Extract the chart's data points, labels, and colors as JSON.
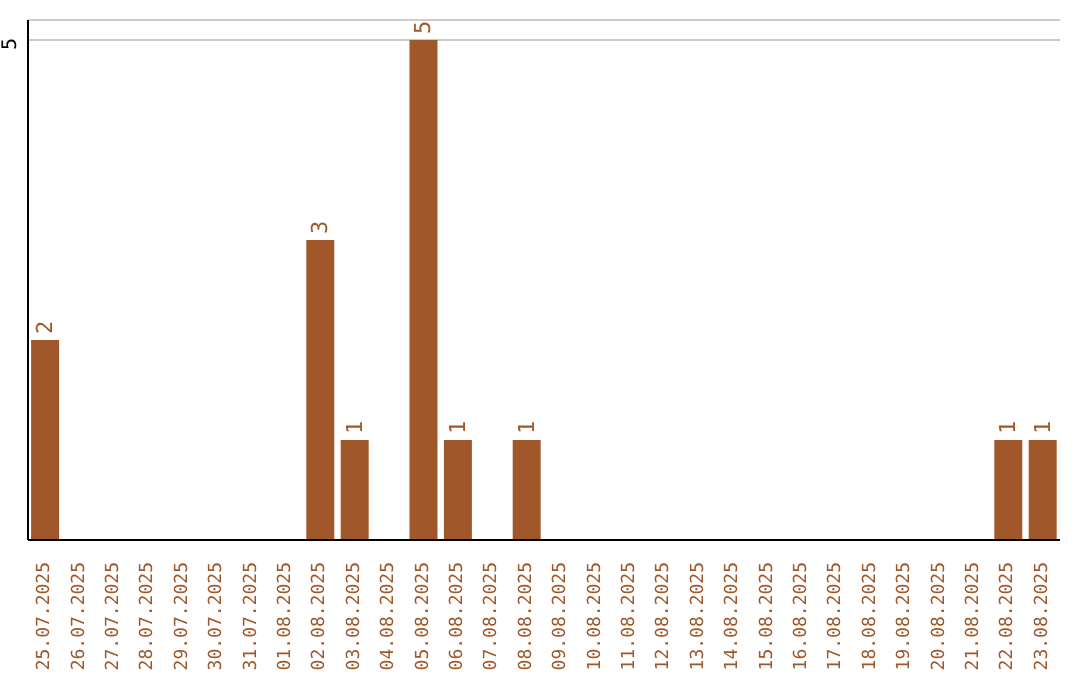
{
  "chart_data": {
    "type": "bar",
    "categories": [
      "25.07.2025",
      "26.07.2025",
      "27.07.2025",
      "28.07.2025",
      "29.07.2025",
      "30.07.2025",
      "31.07.2025",
      "01.08.2025",
      "02.08.2025",
      "03.08.2025",
      "04.08.2025",
      "05.08.2025",
      "06.08.2025",
      "07.08.2025",
      "08.08.2025",
      "09.08.2025",
      "10.08.2025",
      "11.08.2025",
      "12.08.2025",
      "13.08.2025",
      "14.08.2025",
      "15.08.2025",
      "16.08.2025",
      "17.08.2025",
      "18.08.2025",
      "19.08.2025",
      "20.08.2025",
      "21.08.2025",
      "22.08.2025",
      "23.08.2025"
    ],
    "values": [
      2,
      0,
      0,
      0,
      0,
      0,
      0,
      0,
      3,
      1,
      0,
      5,
      1,
      0,
      1,
      0,
      0,
      0,
      0,
      0,
      0,
      0,
      0,
      0,
      0,
      0,
      0,
      0,
      1,
      1
    ],
    "color": "#a0582a",
    "value_labels": [
      "2",
      null,
      null,
      null,
      null,
      null,
      null,
      null,
      "3",
      "1",
      null,
      "5",
      "1",
      null,
      "1",
      null,
      null,
      null,
      null,
      null,
      null,
      null,
      null,
      null,
      null,
      null,
      null,
      null,
      "1",
      "1"
    ],
    "ylim": [
      0,
      5.2
    ],
    "yticks": [
      5
    ],
    "grid": "y"
  }
}
